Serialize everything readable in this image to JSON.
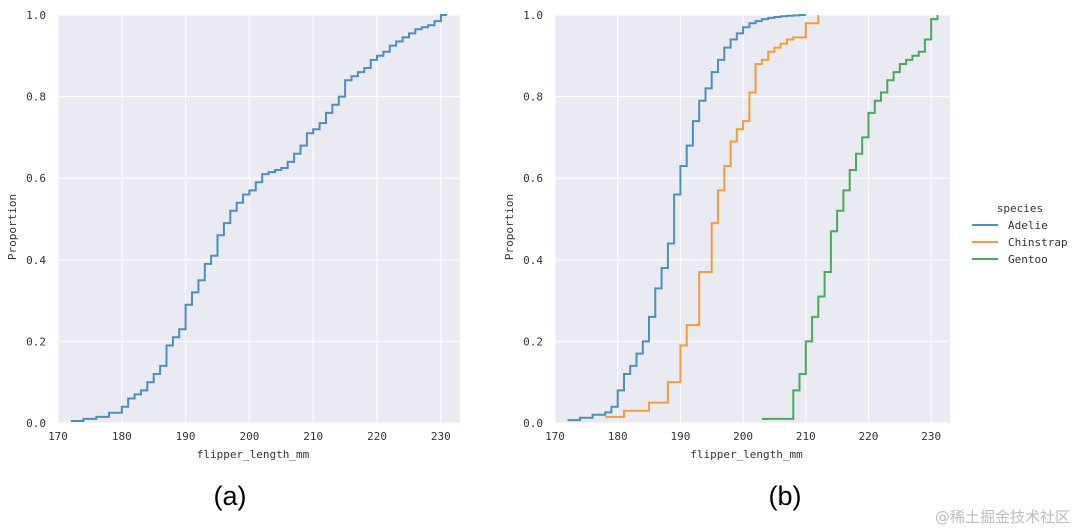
{
  "chart_data": [
    {
      "type": "line",
      "caption": "(a)",
      "xlabel": "flipper_length_mm",
      "ylabel": "Proportion",
      "xlim": [
        170,
        233
      ],
      "ylim": [
        0,
        1
      ],
      "xticks": [
        170,
        180,
        190,
        200,
        210,
        220,
        230
      ],
      "yticks": [
        0.0,
        0.2,
        0.4,
        0.6,
        0.8,
        1.0
      ],
      "grid": true,
      "series": [
        {
          "color": "#4c8fbf",
          "x": [
            172,
            174,
            176,
            178,
            180,
            181,
            182,
            183,
            184,
            185,
            186,
            187,
            188,
            189,
            190,
            191,
            192,
            193,
            194,
            195,
            196,
            197,
            198,
            199,
            200,
            201,
            202,
            203,
            204,
            205,
            206,
            207,
            208,
            209,
            210,
            211,
            212,
            213,
            214,
            215,
            216,
            217,
            218,
            219,
            220,
            221,
            222,
            223,
            224,
            225,
            226,
            227,
            228,
            229,
            230,
            231
          ],
          "y": [
            0.005,
            0.01,
            0.015,
            0.025,
            0.04,
            0.06,
            0.07,
            0.08,
            0.1,
            0.12,
            0.14,
            0.19,
            0.21,
            0.23,
            0.29,
            0.32,
            0.35,
            0.39,
            0.41,
            0.46,
            0.49,
            0.52,
            0.54,
            0.56,
            0.57,
            0.59,
            0.61,
            0.615,
            0.62,
            0.625,
            0.64,
            0.66,
            0.68,
            0.71,
            0.72,
            0.735,
            0.76,
            0.78,
            0.8,
            0.84,
            0.85,
            0.86,
            0.87,
            0.89,
            0.9,
            0.91,
            0.925,
            0.935,
            0.945,
            0.955,
            0.965,
            0.97,
            0.975,
            0.985,
            1.0,
            1.0
          ]
        }
      ]
    },
    {
      "type": "line",
      "caption": "(b)",
      "xlabel": "flipper_length_mm",
      "ylabel": "Proportion",
      "xlim": [
        170,
        233
      ],
      "ylim": [
        0,
        1
      ],
      "xticks": [
        170,
        180,
        190,
        200,
        210,
        220,
        230
      ],
      "yticks": [
        0.0,
        0.2,
        0.4,
        0.6,
        0.8,
        1.0
      ],
      "grid": true,
      "legend": {
        "title": "species",
        "placement": "right",
        "entries": [
          "Adelie",
          "Chinstrap",
          "Gentoo"
        ]
      },
      "series": [
        {
          "name": "Adelie",
          "color": "#4c8fbf",
          "x": [
            172,
            174,
            176,
            178,
            179,
            180,
            181,
            182,
            183,
            184,
            185,
            186,
            187,
            188,
            189,
            190,
            191,
            192,
            193,
            194,
            195,
            196,
            197,
            198,
            199,
            200,
            201,
            202,
            203,
            204,
            205,
            206,
            207,
            208,
            209,
            210
          ],
          "y": [
            0.007,
            0.013,
            0.02,
            0.026,
            0.04,
            0.08,
            0.12,
            0.14,
            0.17,
            0.2,
            0.26,
            0.33,
            0.38,
            0.44,
            0.56,
            0.63,
            0.68,
            0.74,
            0.79,
            0.82,
            0.86,
            0.89,
            0.92,
            0.94,
            0.955,
            0.97,
            0.98,
            0.985,
            0.99,
            0.993,
            0.995,
            0.997,
            0.998,
            0.999,
            1.0,
            1.0
          ]
        },
        {
          "name": "Chinstrap",
          "color": "#f39c3a",
          "x": [
            178,
            181,
            185,
            188,
            190,
            191,
            193,
            195,
            196,
            197,
            198,
            199,
            200,
            201,
            202,
            203,
            204,
            205,
            206,
            207,
            208,
            210,
            212
          ],
          "y": [
            0.015,
            0.03,
            0.05,
            0.1,
            0.19,
            0.24,
            0.37,
            0.49,
            0.57,
            0.63,
            0.69,
            0.72,
            0.74,
            0.81,
            0.88,
            0.89,
            0.91,
            0.92,
            0.93,
            0.94,
            0.945,
            0.98,
            1.0
          ]
        },
        {
          "name": "Gentoo",
          "color": "#4aa95a",
          "x": [
            203,
            208,
            209,
            210,
            211,
            212,
            213,
            214,
            215,
            216,
            217,
            218,
            219,
            220,
            221,
            222,
            223,
            224,
            225,
            226,
            227,
            228,
            229,
            230,
            231
          ],
          "y": [
            0.01,
            0.08,
            0.12,
            0.2,
            0.26,
            0.31,
            0.37,
            0.47,
            0.52,
            0.57,
            0.62,
            0.66,
            0.7,
            0.76,
            0.79,
            0.81,
            0.84,
            0.86,
            0.88,
            0.89,
            0.9,
            0.91,
            0.94,
            0.99,
            1.0
          ]
        }
      ]
    }
  ],
  "captions": {
    "a": "(a)",
    "b": "(b)"
  },
  "watermark": "@稀土掘金技术社区"
}
